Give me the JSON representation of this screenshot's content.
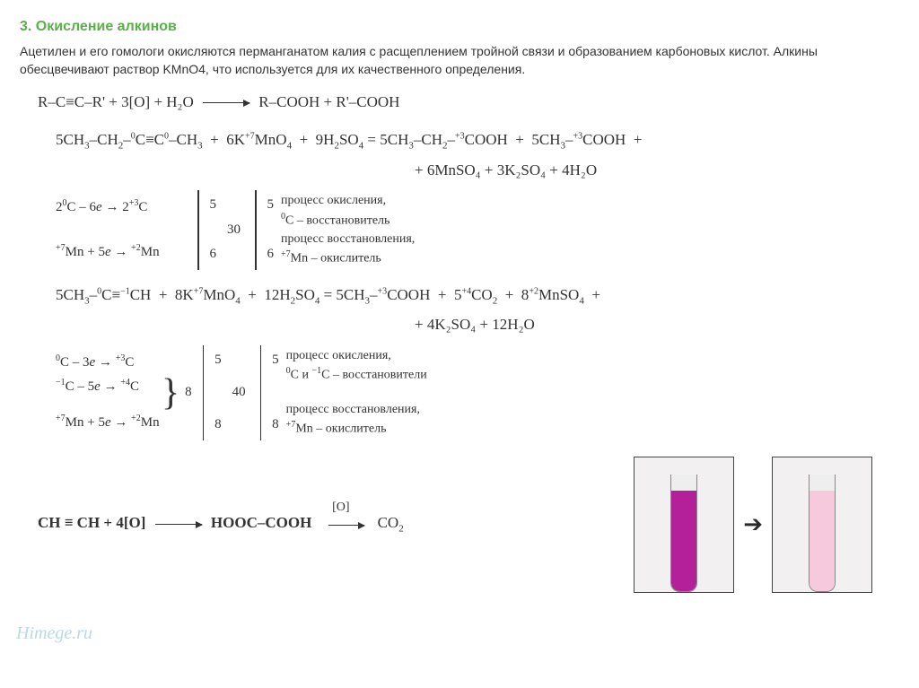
{
  "title": "3. Окисление алкинов",
  "intro": "Ацетилен и его гомологи окисляются перманганатом калия с расщеплением тройной связи и образованием карбоновых кислот. Алкины обесцвечивают раствор KMnO4, что используется для их качественного определения.",
  "general_eq": {
    "left": "R–C≡C–R'  +  3[O]  +  H₂O",
    "right": "R–COOH  +  R'–COOH"
  },
  "rx1": {
    "line1_left": "5CH₃–CH₂–C≡C–CH₃  +  6KMnO₄  +  9H₂SO₄ = 5CH₃–CH₂–COOH  +  5CH₃–COOH  +",
    "line1_ox_pos": "ox over C–C and Mn",
    "line2": "+ 6MnSO₄ + 3K₂SO₄ + 4H₂O",
    "half": {
      "top": "2C – 6e → 2C",
      "top_ox": "(0 → +3)",
      "bot": "Mn + 5e → Mn",
      "bot_ox": "(+7 → +2)",
      "t_coef": "5",
      "b_coef": "6",
      "lcm": "30",
      "desc_top_a": "процесс окисления,",
      "desc_top_b": "C – восстановитель",
      "desc_bot_a": "процесс восстановления,",
      "desc_bot_b": "Mn – окислитель"
    }
  },
  "rx2": {
    "line1": "5CH₃–C≡CH  +  8KMnO₄  +  12H₂SO₄ = 5CH₃–COOH  +  5CO₂  +  8MnSO₄  +",
    "line2": "+ 4K₂SO₄ + 12H₂O",
    "half": {
      "top1": "C – 3e → C",
      "top1_ox": "(0 → +3)",
      "top2": "C – 5e → C",
      "top2_ox": "(−1 → +4)",
      "tgroup": "8",
      "bot": "Mn + 5e → Mn",
      "bot_ox": "(+7 → +2)",
      "t_coef": "5",
      "b_coef": "8",
      "lcm": "40",
      "desc_top_a": "процесс окисления,",
      "desc_top_b": "C и C – восстановители",
      "desc_bot_a": "процесс восстановления,",
      "desc_bot_b": "Mn – окислитель"
    }
  },
  "final": {
    "left": "CH≡CH + 4[O]",
    "mid_above": "[O]",
    "mid": "HOOC–COOH",
    "right": "CO₂"
  },
  "watermark": "Himege.ru",
  "tubes": {
    "color_before": "#b41f9a",
    "height_before": 112,
    "color_after": "#f6c9dc",
    "height_after": 112,
    "arrow": "➔"
  }
}
